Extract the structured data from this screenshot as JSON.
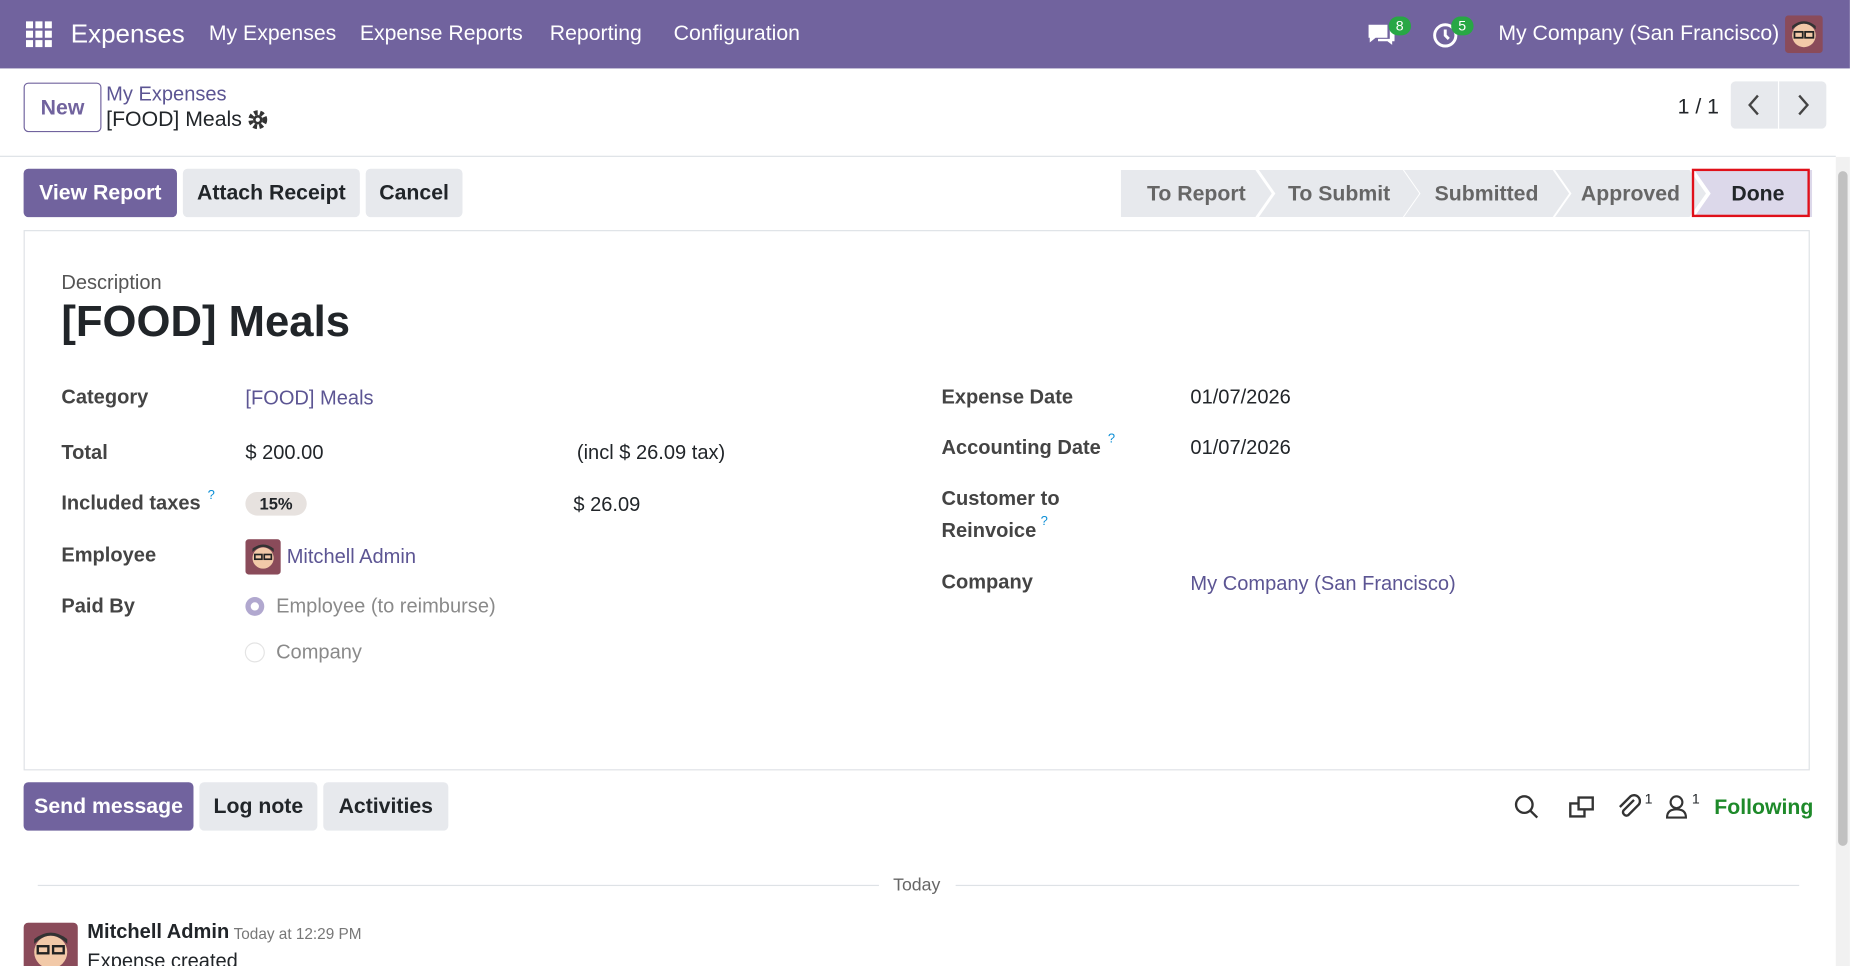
{
  "navbar": {
    "app": "Expenses",
    "menu": [
      "My Expenses",
      "Expense Reports",
      "Reporting",
      "Configuration"
    ],
    "messages_count": 8,
    "activities_count": 5,
    "company": "My Company (San Francisco)"
  },
  "control_panel": {
    "new_button": "New",
    "breadcrumb_parent": "My Expenses",
    "breadcrumb_current": "[FOOD] Meals",
    "pager": "1 / 1"
  },
  "actions": [
    "View Report",
    "Attach Receipt",
    "Cancel"
  ],
  "statusbar": {
    "stages": [
      "To Report",
      "To Submit",
      "Submitted",
      "Approved",
      "Done"
    ]
  },
  "form": {
    "description_label": "Description",
    "description": "[FOOD] Meals",
    "help_mark": "?",
    "category_label": "Category",
    "category": "[FOOD] Meals",
    "total_label": "Total",
    "total": "$ 200.00",
    "total_tax_note": "(incl $ 26.09 tax)",
    "taxes_label": "Included taxes",
    "tax_badge": "15%",
    "tax_amount": "$ 26.09",
    "employee_label": "Employee",
    "employee": "Mitchell Admin",
    "paid_by_label": "Paid By",
    "paid_by_options": [
      "Employee (to reimburse)",
      "Company"
    ],
    "expense_date_label": "Expense Date",
    "expense_date": "01/07/2026",
    "accounting_date_label": "Accounting Date",
    "accounting_date": "01/07/2026",
    "customer_label_lines": [
      "Customer to",
      "Reinvoice"
    ],
    "company_label": "Company",
    "company": "My Company (San Francisco)"
  },
  "chatter": {
    "buttons": [
      "Send message",
      "Log note",
      "Activities"
    ],
    "attachments_count": 1,
    "followers_count": 1,
    "following": "Following",
    "date_separator": "Today",
    "message": {
      "author": "Mitchell Admin",
      "time": "Today at 12:29 PM",
      "body": "Expense created"
    }
  }
}
